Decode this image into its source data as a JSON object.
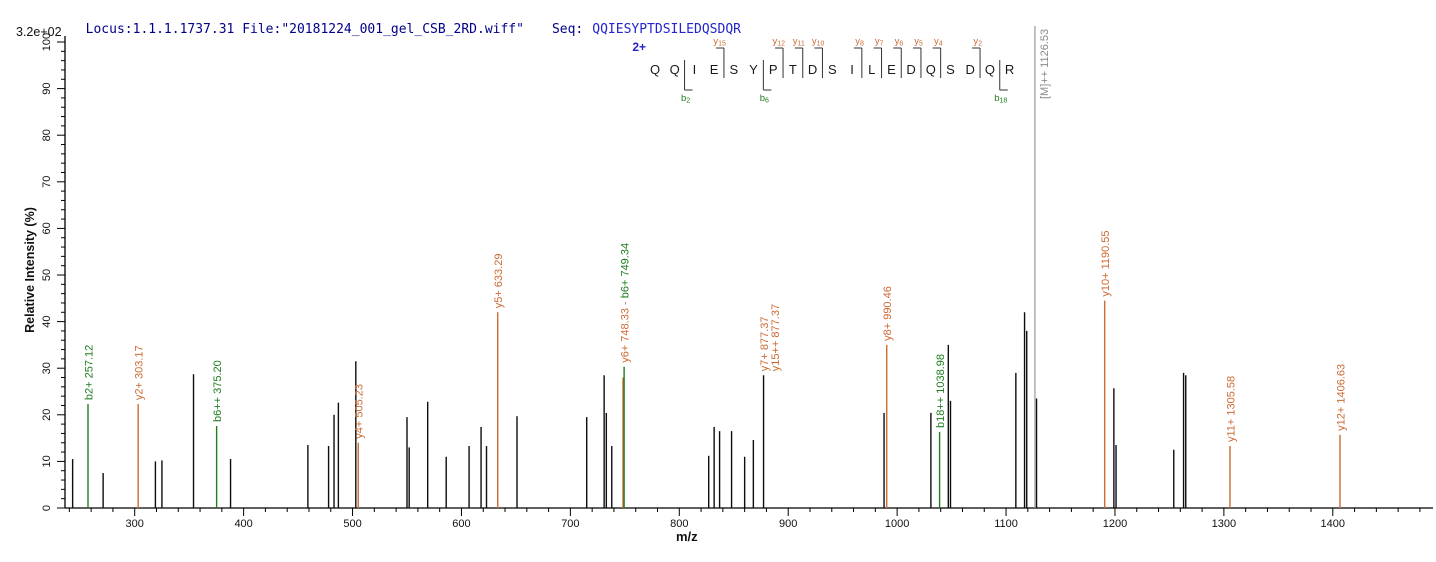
{
  "header": {
    "locus_file": "Locus:1.1.1.1737.31 File:\"20181224_001_gel_CSB_2RD.wiff\"",
    "seq_label": "Seq:",
    "sequence": "QQIESYPTDSILEDQSDQR",
    "base_peak_intensity": "3.2e+02"
  },
  "axes": {
    "x_label": "m/z",
    "y_label": "Relative Intensity (%)",
    "x_min": 236,
    "x_max": 1492,
    "x_major_ticks": [
      300,
      400,
      500,
      600,
      700,
      800,
      900,
      1000,
      1100,
      1200,
      1300,
      1400
    ],
    "x_minor_step": 20,
    "y_min": 0,
    "y_max": 100,
    "y_major_step": 10,
    "y_minor_step": 2
  },
  "annotation": {
    "charge_label": "2+",
    "residues": "QQIESYPTDSILEDQSDQR",
    "y_ions": [
      {
        "name": "y",
        "sub": "15",
        "before_residue": 4
      },
      {
        "name": "y",
        "sub": "12",
        "before_residue": 7
      },
      {
        "name": "y",
        "sub": "11",
        "before_residue": 8
      },
      {
        "name": "y",
        "sub": "10",
        "before_residue": 9
      },
      {
        "name": "y",
        "sub": "8",
        "before_residue": 11
      },
      {
        "name": "y",
        "sub": "7",
        "before_residue": 12
      },
      {
        "name": "y",
        "sub": "6",
        "before_residue": 13
      },
      {
        "name": "y",
        "sub": "5",
        "before_residue": 14
      },
      {
        "name": "y",
        "sub": "4",
        "before_residue": 15
      },
      {
        "name": "y",
        "sub": "2",
        "before_residue": 17
      }
    ],
    "b_ions": [
      {
        "name": "b",
        "sub": "2",
        "before_residue": 2
      },
      {
        "name": "b",
        "sub": "6",
        "before_residue": 6
      },
      {
        "name": "b",
        "sub": "18",
        "before_residue": 18
      }
    ],
    "precursor_label": "[M]++ 1126.53"
  },
  "colors": {
    "y": "#cd6b33",
    "b": "#1f7d1f",
    "none": "#0d0d0d",
    "precursor": "#9a9a9a",
    "precursor_label": "#8a8a8a",
    "sep": "#8a8a8a",
    "axis": "#000000",
    "marker_bracket": "#333333",
    "charge_blue": "#2424cd",
    "header_navy": "#00008b"
  },
  "chart_data": {
    "type": "bar",
    "subtype": "centroided MS/MS mass spectrum",
    "title": "Locus:1.1.1.1737.31 File:\"20181224_001_gel_CSB_2RD.wiff\" Seq: QQIESYPTDSILEDQSDQR",
    "xlabel": "m/z",
    "ylabel": "Relative Intensity (%)",
    "xlim": [
      236,
      1492
    ],
    "ylim": [
      0,
      100
    ],
    "grid": false,
    "legend": false,
    "peaks": [
      {
        "mz": 243,
        "i": 10.5,
        "series": "none"
      },
      {
        "mz": 257.12,
        "i": 22.3,
        "series": "b",
        "label": "b2+ 257.12"
      },
      {
        "mz": 271,
        "i": 7.5,
        "series": "none"
      },
      {
        "mz": 303.17,
        "i": 22.3,
        "series": "y",
        "label": "y2+ 303.17"
      },
      {
        "mz": 319,
        "i": 10.0,
        "series": "none"
      },
      {
        "mz": 325,
        "i": 10.2,
        "series": "none"
      },
      {
        "mz": 354,
        "i": 28.7,
        "series": "none"
      },
      {
        "mz": 375.2,
        "i": 17.6,
        "series": "b",
        "label": "b6++ 375.20"
      },
      {
        "mz": 388,
        "i": 10.5,
        "series": "none"
      },
      {
        "mz": 459,
        "i": 13.5,
        "series": "none"
      },
      {
        "mz": 478,
        "i": 13.3,
        "series": "none"
      },
      {
        "mz": 483,
        "i": 20.0,
        "series": "none"
      },
      {
        "mz": 487,
        "i": 22.6,
        "series": "none"
      },
      {
        "mz": 503,
        "i": 31.5,
        "series": "none"
      },
      {
        "mz": 505.23,
        "i": 14.0,
        "series": "y",
        "label": "y4+ 505.23"
      },
      {
        "mz": 550,
        "i": 19.5,
        "series": "none"
      },
      {
        "mz": 552,
        "i": 13.0,
        "series": "none"
      },
      {
        "mz": 569,
        "i": 22.8,
        "series": "none"
      },
      {
        "mz": 586,
        "i": 11.0,
        "series": "none"
      },
      {
        "mz": 607,
        "i": 13.3,
        "series": "none"
      },
      {
        "mz": 618,
        "i": 17.4,
        "series": "none"
      },
      {
        "mz": 623,
        "i": 13.3,
        "series": "none"
      },
      {
        "mz": 633.29,
        "i": 42.0,
        "series": "y",
        "label": "y5+ 633.29"
      },
      {
        "mz": 651,
        "i": 19.7,
        "series": "none"
      },
      {
        "mz": 715,
        "i": 19.5,
        "series": "none"
      },
      {
        "mz": 731,
        "i": 28.5,
        "series": "none"
      },
      {
        "mz": 733,
        "i": 20.4,
        "series": "none"
      },
      {
        "mz": 738,
        "i": 13.3,
        "series": "none"
      },
      {
        "mz": 748.33,
        "i": 28.0,
        "series": "y"
      },
      {
        "mz": 749.34,
        "i": 30.3,
        "series": "b",
        "label_parts": [
          {
            "text": "y6+ 748.33",
            "series": "y"
          },
          {
            "text": " - ",
            "series": "sep"
          },
          {
            "text": "b6+ 749.34",
            "series": "b"
          }
        ]
      },
      {
        "mz": 827,
        "i": 11.2,
        "series": "none"
      },
      {
        "mz": 832,
        "i": 17.4,
        "series": "none"
      },
      {
        "mz": 837,
        "i": 16.5,
        "series": "none"
      },
      {
        "mz": 848,
        "i": 16.5,
        "series": "none"
      },
      {
        "mz": 860,
        "i": 11.0,
        "series": "none"
      },
      {
        "mz": 868,
        "i": 14.6,
        "series": "none"
      },
      {
        "mz": 877.37,
        "i": 28.5,
        "series": "none",
        "label": "y7+ 877.37",
        "label2": "y15++ 877.37",
        "label_series": "y"
      },
      {
        "mz": 988,
        "i": 20.4,
        "series": "none"
      },
      {
        "mz": 990.46,
        "i": 35.0,
        "series": "y",
        "label": "y8+ 990.46"
      },
      {
        "mz": 1031,
        "i": 20.4,
        "series": "none"
      },
      {
        "mz": 1038.98,
        "i": 16.3,
        "series": "b",
        "label": "b18++ 1038.98"
      },
      {
        "mz": 1047,
        "i": 35.0,
        "series": "none"
      },
      {
        "mz": 1049,
        "i": 23.0,
        "series": "none"
      },
      {
        "mz": 1109,
        "i": 29.0,
        "series": "none"
      },
      {
        "mz": 1117,
        "i": 42.0,
        "series": "none"
      },
      {
        "mz": 1119,
        "i": 38.0,
        "series": "none"
      },
      {
        "mz": 1126.53,
        "i": 100,
        "series": "precursor",
        "label": "[M]++ 1126.53"
      },
      {
        "mz": 1128,
        "i": 23.5,
        "series": "none"
      },
      {
        "mz": 1190.55,
        "i": 44.5,
        "series": "y",
        "label": "y10+ 1190.55"
      },
      {
        "mz": 1199,
        "i": 25.7,
        "series": "none"
      },
      {
        "mz": 1201,
        "i": 13.5,
        "series": "none"
      },
      {
        "mz": 1254,
        "i": 12.5,
        "series": "none"
      },
      {
        "mz": 1263,
        "i": 29.0,
        "series": "none"
      },
      {
        "mz": 1265,
        "i": 28.5,
        "series": "none"
      },
      {
        "mz": 1305.58,
        "i": 13.3,
        "series": "y",
        "label": "y11+ 1305.58"
      },
      {
        "mz": 1406.63,
        "i": 15.7,
        "series": "y",
        "label": "y12+ 1406.63"
      }
    ]
  }
}
